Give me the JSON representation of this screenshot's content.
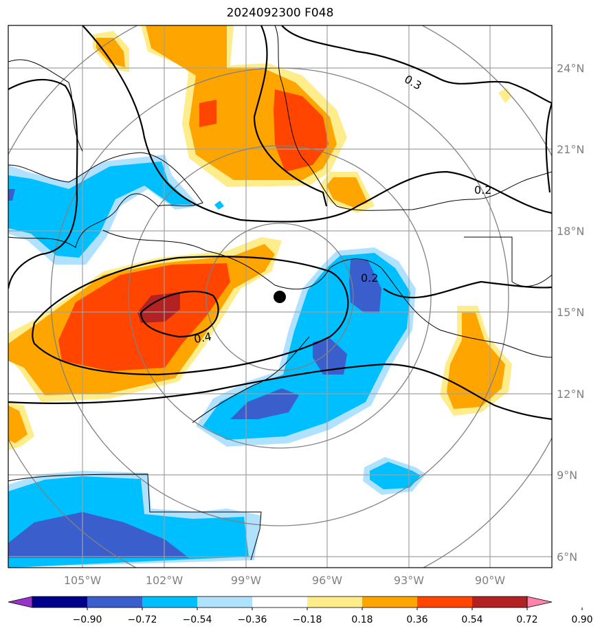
{
  "title": "2024092300 F048",
  "map": {
    "lon_labels": [
      "105°W",
      "102°W",
      "99°W",
      "96°W",
      "93°W",
      "90°W"
    ],
    "lat_labels": [
      "24°N",
      "21°N",
      "18°N",
      "15°N",
      "12°N",
      "9°N",
      "6°N"
    ],
    "contour_labels": [
      "0.3",
      "0.2",
      "0.4",
      "0.2"
    ],
    "storm_center": {
      "lon": -97.5,
      "lat": 15.5
    }
  },
  "colorbar": {
    "tick_labels": [
      "−0.90",
      "−0.72",
      "−0.54",
      "−0.36",
      "−0.18",
      "0.18",
      "0.36",
      "0.54",
      "0.72",
      "0.90"
    ],
    "colors": [
      "#9932cc",
      "#00008b",
      "#3a5fcd",
      "#00bfff",
      "#b0e2ff",
      "#ffffff",
      "#ffec8b",
      "#ffa500",
      "#ff4500",
      "#b22222",
      "#ff82ab"
    ]
  }
}
